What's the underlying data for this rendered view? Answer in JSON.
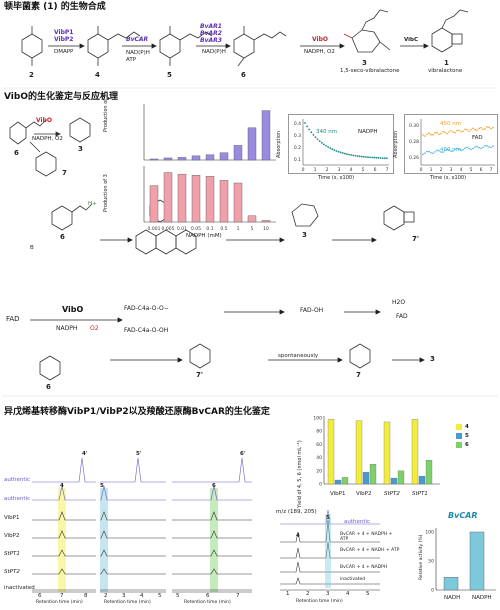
{
  "section1": {
    "title": "顿毕菌素 (1) 的生物合成",
    "compounds": {
      "c2": "2",
      "c4": "4",
      "c5": "5",
      "c6": "6",
      "c3": "3",
      "c3_name": "1,5-seco-vibralactone",
      "c1": "1",
      "c1_name": "vibralactone"
    },
    "steps": {
      "s1_enzymes": [
        "VibP1",
        "VibP2"
      ],
      "s1_cofactor": "DMAPP",
      "s2_enzyme": "BvCAR",
      "s2_cofactor": "NAD(P)H ATP",
      "s3_enzymes": [
        "BvAR1",
        "BvAR2",
        "BvAR3"
      ],
      "s3_cofactor": "NAD(P)H",
      "s4_enzyme": "VibO",
      "s4_cofactor": "NADPH, O2",
      "s5_enzyme": "VibC"
    }
  },
  "section2": {
    "title": "VibO的生化鉴定与反应机理",
    "scheme_labels": {
      "enzyme": "VibO",
      "cofactor": "NADPH, O2",
      "c6": "6",
      "c7": "7",
      "c3": "3"
    },
    "bar_chart": {
      "ylabel_top": "Production of 7",
      "ylabel_bottom": "Production of 3",
      "xlabel": "NADPH (mM)",
      "categories": [
        "0.001",
        "0.005",
        "0.01",
        "0.05",
        "0.1",
        "0.5",
        "1",
        "5",
        "10"
      ],
      "top_values": [
        2,
        4,
        5,
        8,
        10,
        14,
        28,
        62,
        95
      ],
      "bottom_values": [
        70,
        95,
        92,
        90,
        88,
        80,
        75,
        12,
        3
      ],
      "top_color": "#9b8be0",
      "bottom_color": "#f0a0a8"
    },
    "abs_chart1": {
      "label": "340 nm",
      "sublabel": "NADPH",
      "ylabel": "Absorption",
      "xlabel": "Time (s, x100)",
      "yticks": [
        "0.4",
        "0.3",
        "0.2",
        "0.1"
      ],
      "xticks": [
        "0",
        "1",
        "2",
        "3",
        "4",
        "5",
        "6",
        "7"
      ],
      "color": "#1a8a8a"
    },
    "abs_chart2": {
      "label1": "450 nm",
      "label2": "460 nm",
      "sublabel": "FAD",
      "ylabel": "Absorption",
      "xlabel": "Time (s, x100)",
      "yticks": [
        "0.30",
        "0.28",
        "0.26"
      ],
      "xticks": [
        "0",
        "1",
        "2",
        "3",
        "4",
        "5",
        "6",
        "7"
      ],
      "color1": "#f0a020",
      "color2": "#40b0e0"
    }
  },
  "mechanism": {
    "fad": "FAD",
    "enzyme": "VibO",
    "nadph": "NADPH",
    "o2": "O2",
    "intermediates": [
      "FAD-C4a-O-O−",
      "FAD-C4a-O-OH",
      "FAD-OH",
      "H2O",
      "FAD"
    ],
    "labels": {
      "c6a": "6",
      "c3": "3",
      "c7p": "7'",
      "c7pb": "7'",
      "c7": "7",
      "c3b": "3",
      "c6b": "6",
      "spontaneously": "spontaneously",
      "hplus": "H+",
      "base": "B"
    }
  },
  "section3": {
    "title": "异戊烯基转移酶VibP1/VibP2以及羧酸还原酶BvCAR的生化鉴定",
    "hplc_panels": [
      {
        "peak_label": "4'",
        "top_label": "4"
      },
      {
        "peak_label": "5'",
        "top_label": "5"
      },
      {
        "peak_label": "6'",
        "top_label": "6"
      }
    ],
    "trace_labels": [
      "authentic",
      "authentic",
      "VibP1",
      "VibP2",
      "StPT1",
      "StPT2",
      "inactivated"
    ],
    "xlabel": "Retention time (min)",
    "xticks_a": [
      "6",
      "7",
      "8"
    ],
    "xticks_b": [
      "2",
      "3",
      "4",
      "5"
    ],
    "xticks_c": [
      "5",
      "6",
      "7"
    ],
    "yield_chart": {
      "ylabel": "Yield of 4, 5, 6 (nmol mL⁻¹)",
      "categories": [
        "VibP1",
        "VibP2",
        "StPT2",
        "StPT1"
      ],
      "series": [
        {
          "name": "4",
          "values": [
            98,
            96,
            94,
            98
          ],
          "color": "#f2ec3c"
        },
        {
          "name": "5",
          "values": [
            6,
            18,
            9,
            12
          ],
          "color": "#4a9ad0"
        },
        {
          "name": "6",
          "values": [
            10,
            30,
            20,
            36
          ],
          "color": "#7ed06a"
        }
      ],
      "yticks": [
        "0",
        "20",
        "40",
        "60",
        "80",
        "100"
      ]
    },
    "ms_panel": {
      "mz": "m/z (189, 205)",
      "traces": [
        "authentic",
        "BvCAR + 4 + NADPH + ATP",
        "BvCAR + 4 + NADH + ATP",
        "BvCAR + 4 + NADPH",
        "inactivated"
      ],
      "peaks": {
        "p4": "4",
        "p5": "5"
      },
      "xlabel": "Retention time (min)",
      "xticks": [
        "1",
        "2",
        "3",
        "4",
        "5"
      ]
    },
    "activity_chart": {
      "title": "BvCAR",
      "ylabel": "Relative activity (%)",
      "categories": [
        "NADH",
        "NADPH"
      ],
      "values": [
        22,
        100
      ],
      "yticks": [
        "0",
        "50",
        "100"
      ],
      "color": "#7ec8dc"
    }
  }
}
